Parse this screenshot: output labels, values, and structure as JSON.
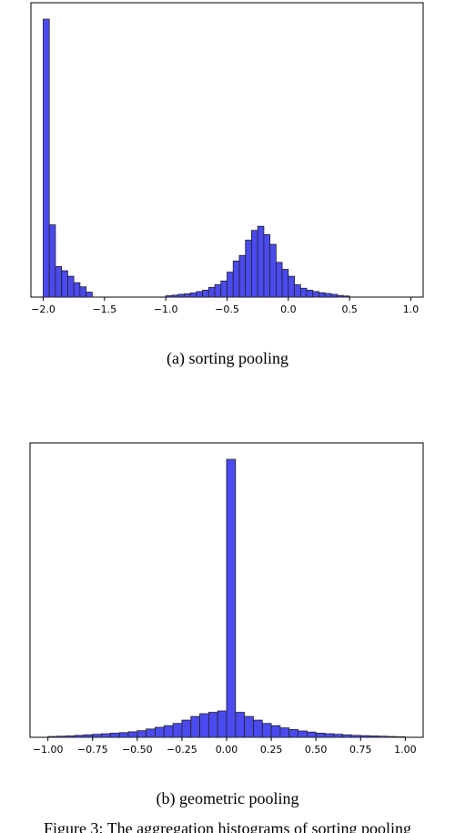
{
  "chart_data": [
    {
      "type": "bar",
      "subtype": "histogram",
      "xlim": [
        -2.1,
        1.1
      ],
      "ylim": [
        0,
        1.0
      ],
      "yaxis": "no tick labels",
      "xticks": [
        "−2.0",
        "−1.5",
        "−1.0",
        "−0.5",
        "0.0",
        "0.5",
        "1.0"
      ],
      "xtick_values": [
        -2.0,
        -1.5,
        -1.0,
        -0.5,
        0.0,
        0.5,
        1.0
      ],
      "bin_width": 0.05,
      "bin_start": -2.0,
      "values": [
        1.0,
        0.26,
        0.11,
        0.095,
        0.075,
        0.052,
        0.037,
        0.018,
        0.0,
        0.0,
        0.0,
        0.0,
        0.0,
        0.0,
        0.0,
        0.0,
        0.0,
        0.0,
        0.0,
        0.0,
        0.005,
        0.007,
        0.01,
        0.012,
        0.015,
        0.02,
        0.025,
        0.035,
        0.045,
        0.058,
        0.09,
        0.13,
        0.15,
        0.205,
        0.24,
        0.255,
        0.225,
        0.19,
        0.125,
        0.1,
        0.075,
        0.045,
        0.032,
        0.025,
        0.02,
        0.016,
        0.013,
        0.01,
        0.006,
        0.004
      ],
      "bar_color": "#4a4af0",
      "edge_color": "#222222"
    },
    {
      "type": "bar",
      "subtype": "histogram",
      "xlim": [
        -1.1,
        1.1
      ],
      "ylim": [
        0,
        1.0
      ],
      "yaxis": "no tick labels",
      "xticks": [
        "−1.00",
        "−0.75",
        "−0.50",
        "−0.25",
        "0.00",
        "0.25",
        "0.50",
        "0.75",
        "1.00"
      ],
      "xtick_values": [
        -1.0,
        -0.75,
        -0.5,
        -0.25,
        0.0,
        0.25,
        0.5,
        0.75,
        1.0
      ],
      "bin_width": 0.05,
      "bin_start": -1.0,
      "values": [
        0.003,
        0.004,
        0.005,
        0.007,
        0.009,
        0.011,
        0.013,
        0.015,
        0.017,
        0.02,
        0.024,
        0.03,
        0.036,
        0.042,
        0.05,
        0.062,
        0.075,
        0.085,
        0.09,
        0.095,
        1.0,
        0.09,
        0.075,
        0.062,
        0.05,
        0.042,
        0.034,
        0.028,
        0.023,
        0.019,
        0.015,
        0.013,
        0.011,
        0.009,
        0.007,
        0.006,
        0.005,
        0.004,
        0.003,
        0.002
      ],
      "bar_color": "#4a4af0",
      "edge_color": "#222222"
    }
  ],
  "captions": {
    "a": "(a) sorting pooling",
    "b": "(b) geometric pooling",
    "figure_partial": "Figure 3: The aggregation histograms of sorting pooling"
  }
}
